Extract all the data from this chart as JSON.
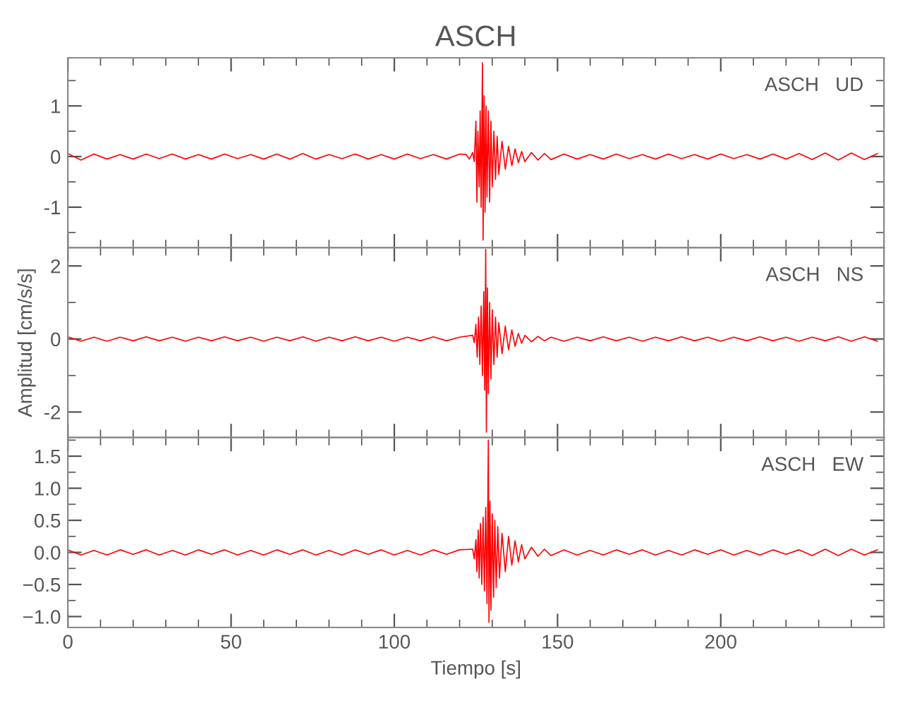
{
  "chart_data": [
    {
      "type": "line",
      "title": "ASCH",
      "annotations": [
        "ASCH   UD"
      ],
      "xlim": [
        0,
        250
      ],
      "xticks": [
        0,
        50,
        100,
        150,
        200
      ],
      "ylim": [
        -1.8,
        1.95
      ],
      "yticks": [
        -1,
        0,
        1
      ],
      "tick_labels": "y",
      "grid": false,
      "series": [
        {
          "color": "#ff0000",
          "x": [
            0,
            4,
            8,
            12,
            16,
            20,
            24,
            28,
            32,
            36,
            40,
            44,
            48,
            52,
            56,
            60,
            64,
            68,
            72,
            76,
            80,
            84,
            88,
            92,
            96,
            100,
            104,
            108,
            112,
            116,
            120,
            122,
            123,
            124,
            124.5,
            125,
            125.3,
            125.6,
            126,
            126.3,
            126.6,
            127,
            127.2,
            127.5,
            127.8,
            128.1,
            128.4,
            128.8,
            129.2,
            129.6,
            130,
            130.5,
            131,
            131.5,
            132,
            133,
            134,
            135,
            136,
            137,
            138,
            139,
            140,
            142,
            144,
            146,
            148,
            152,
            156,
            160,
            164,
            168,
            172,
            176,
            180,
            184,
            188,
            192,
            196,
            200,
            204,
            208,
            212,
            216,
            220,
            224,
            228,
            232,
            236,
            240,
            244,
            248
          ],
          "values": [
            0.06,
            -0.07,
            0.05,
            -0.05,
            0.04,
            -0.05,
            0.05,
            -0.04,
            0.05,
            -0.05,
            0.04,
            -0.05,
            0.05,
            -0.04,
            0.04,
            -0.05,
            0.05,
            -0.05,
            0.06,
            -0.05,
            0.04,
            -0.04,
            0.05,
            -0.05,
            0.04,
            -0.05,
            0.05,
            -0.04,
            0.04,
            -0.05,
            0.05,
            0.04,
            -0.05,
            0.08,
            -0.1,
            0.7,
            -0.9,
            0.5,
            -0.6,
            0.9,
            -1.0,
            1.85,
            -1.65,
            1.2,
            -1.1,
            1.0,
            -0.8,
            0.9,
            -0.9,
            0.7,
            -0.6,
            0.5,
            -0.45,
            0.4,
            -0.35,
            0.3,
            -0.25,
            0.2,
            -0.18,
            0.15,
            -0.12,
            0.1,
            -0.1,
            0.08,
            -0.07,
            0.06,
            -0.06,
            0.05,
            -0.05,
            0.04,
            -0.05,
            0.05,
            -0.04,
            0.04,
            -0.05,
            0.05,
            -0.04,
            0.04,
            -0.05,
            0.05,
            -0.04,
            0.04,
            -0.05,
            0.05,
            -0.05,
            0.06,
            -0.06,
            0.07,
            -0.07,
            0.07,
            -0.06,
            0.06
          ]
        }
      ]
    },
    {
      "type": "line",
      "ylabel": "Amplitud [cm/s/s]",
      "annotations": [
        "ASCH   NS"
      ],
      "xlim": [
        0,
        250
      ],
      "xticks": [
        0,
        50,
        100,
        150,
        200
      ],
      "ylim": [
        -2.7,
        2.5
      ],
      "yticks": [
        -2,
        0,
        2
      ],
      "tick_labels": "y",
      "grid": false,
      "series": [
        {
          "color": "#ff0000",
          "x": [
            0,
            4,
            8,
            12,
            16,
            20,
            24,
            28,
            32,
            36,
            40,
            44,
            48,
            52,
            56,
            60,
            64,
            68,
            72,
            76,
            80,
            84,
            88,
            92,
            96,
            100,
            104,
            108,
            112,
            116,
            120,
            124,
            124.5,
            125,
            125.4,
            125.8,
            126.2,
            126.6,
            127,
            127.4,
            127.7,
            128,
            128.2,
            128.5,
            128.8,
            129.2,
            129.6,
            130,
            130.5,
            131,
            131.5,
            132,
            133,
            134,
            135,
            136,
            137,
            138,
            139,
            140,
            142,
            144,
            146,
            148,
            152,
            156,
            160,
            164,
            168,
            172,
            176,
            180,
            184,
            188,
            192,
            196,
            200,
            204,
            208,
            212,
            216,
            220,
            224,
            228,
            232,
            236,
            240,
            244,
            248
          ],
          "values": [
            0.06,
            -0.06,
            0.05,
            -0.06,
            0.05,
            -0.05,
            0.06,
            -0.05,
            0.05,
            -0.06,
            0.05,
            -0.05,
            0.06,
            -0.05,
            0.05,
            -0.06,
            0.05,
            -0.05,
            0.06,
            -0.06,
            0.05,
            -0.05,
            0.06,
            -0.05,
            0.05,
            -0.06,
            0.05,
            -0.05,
            0.06,
            -0.05,
            0.05,
            0.1,
            -0.1,
            0.4,
            -0.5,
            0.6,
            -0.7,
            0.9,
            -1.0,
            1.3,
            -1.4,
            2.45,
            -2.55,
            1.4,
            -1.5,
            1.0,
            -1.1,
            0.8,
            -0.7,
            0.6,
            -0.5,
            0.45,
            -0.4,
            0.35,
            -0.3,
            0.25,
            -0.2,
            0.15,
            -0.12,
            0.1,
            -0.08,
            0.07,
            -0.05,
            0.05,
            -0.06,
            0.05,
            -0.05,
            0.06,
            -0.05,
            0.05,
            -0.06,
            0.05,
            -0.05,
            0.06,
            -0.05,
            0.05,
            -0.06,
            0.05,
            -0.05,
            0.06,
            -0.05,
            0.05,
            -0.06,
            0.05,
            -0.05,
            0.06,
            -0.06,
            0.06,
            -0.06
          ]
        }
      ]
    },
    {
      "type": "line",
      "xlabel": "Tiempo [s]",
      "annotations": [
        "ASCH   EW"
      ],
      "xlim": [
        0,
        250
      ],
      "xticks": [
        0,
        50,
        100,
        150,
        200
      ],
      "ylim": [
        -1.17,
        1.79
      ],
      "yticks": [
        {
          "value": -1,
          "label": "−1.0"
        },
        {
          "value": -0.5,
          "label": "−0.5"
        },
        {
          "value": 0,
          "label": "0.0"
        },
        {
          "value": 0.5,
          "label": "0.5"
        },
        {
          "value": 1,
          "label": "1.0"
        },
        {
          "value": 1.5,
          "label": "1.5"
        }
      ],
      "grid": false,
      "series": [
        {
          "color": "#ff0000",
          "x": [
            0,
            4,
            8,
            12,
            16,
            20,
            24,
            28,
            32,
            36,
            40,
            44,
            48,
            52,
            56,
            60,
            64,
            68,
            72,
            76,
            80,
            84,
            88,
            92,
            96,
            100,
            104,
            108,
            112,
            116,
            120,
            124,
            124.5,
            125,
            125.3,
            125.7,
            126,
            126.4,
            126.8,
            127.2,
            127.6,
            128,
            128.4,
            128.8,
            129,
            129.3,
            129.6,
            130,
            130.4,
            130.8,
            131.2,
            131.7,
            132.2,
            133,
            134,
            135,
            136,
            137,
            138,
            139,
            140,
            142,
            144,
            146,
            148,
            152,
            156,
            160,
            164,
            168,
            172,
            176,
            180,
            184,
            188,
            192,
            196,
            200,
            204,
            208,
            212,
            216,
            220,
            224,
            228,
            232,
            236,
            240,
            244,
            248
          ],
          "values": [
            0.04,
            -0.04,
            0.03,
            -0.04,
            0.04,
            -0.03,
            0.04,
            -0.04,
            0.03,
            -0.04,
            0.04,
            -0.03,
            0.04,
            -0.04,
            0.03,
            -0.04,
            0.04,
            -0.03,
            0.04,
            -0.04,
            0.03,
            -0.04,
            0.04,
            -0.03,
            0.04,
            -0.04,
            0.03,
            -0.04,
            0.04,
            -0.03,
            0.04,
            0.05,
            -0.1,
            0.2,
            -0.3,
            0.35,
            -0.4,
            0.45,
            -0.5,
            0.55,
            -0.6,
            0.7,
            -0.8,
            1.75,
            -1.09,
            0.8,
            -0.9,
            0.6,
            -0.7,
            0.5,
            -0.55,
            0.4,
            -0.4,
            0.3,
            -0.3,
            0.25,
            -0.2,
            0.18,
            -0.15,
            0.12,
            -0.1,
            0.08,
            -0.06,
            0.05,
            -0.05,
            0.04,
            -0.04,
            0.03,
            -0.04,
            0.04,
            -0.03,
            0.04,
            -0.04,
            0.03,
            -0.04,
            0.04,
            -0.03,
            0.04,
            -0.04,
            0.03,
            -0.04,
            0.04,
            -0.03,
            0.04,
            -0.05,
            0.05,
            -0.05,
            0.05,
            -0.04,
            0.04
          ]
        }
      ]
    }
  ]
}
